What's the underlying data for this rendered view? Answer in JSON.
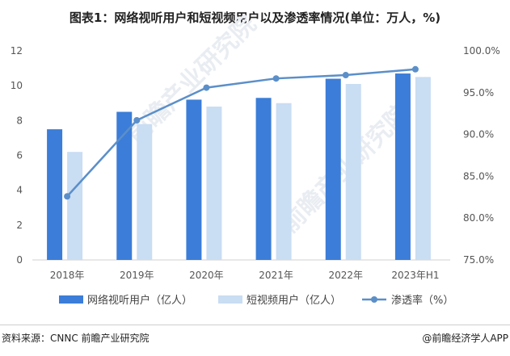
{
  "title": "图表1：网络视听用户和短视频用户以及渗透率情况(单位：万人，%)",
  "footer": {
    "source": "资料来源：CNNC 前瞻产业研究院",
    "credit": "@前瞻经济学人APP"
  },
  "watermarks": [
    "前瞻产业研究院",
    "前瞻产业研究院"
  ],
  "colors": {
    "series1": "#3b7dd8",
    "series2": "#c9ddf3",
    "line": "#5b8fc9",
    "axis": "#d0d0d0"
  },
  "chart_data": {
    "type": "bar",
    "categories": [
      "2018年",
      "2019年",
      "2020年",
      "2021年",
      "2022年",
      "2023年H1"
    ],
    "series": [
      {
        "name": "网络视听用户（亿人）",
        "type": "bar",
        "axis": "left",
        "values": [
          7.5,
          8.5,
          9.2,
          9.3,
          10.4,
          10.7
        ]
      },
      {
        "name": "短视频用户（亿人）",
        "type": "bar",
        "axis": "left",
        "values": [
          6.2,
          7.8,
          8.8,
          9.0,
          10.1,
          10.5
        ]
      },
      {
        "name": "渗透率（%）",
        "type": "line",
        "axis": "right",
        "values": [
          82.6,
          91.7,
          95.6,
          96.7,
          97.1,
          97.8
        ]
      }
    ],
    "left_axis": {
      "min": 0,
      "max": 12,
      "ticks": [
        "0",
        "2",
        "4",
        "6",
        "8",
        "10",
        "12"
      ]
    },
    "right_axis": {
      "min": 75,
      "max": 100,
      "ticks": [
        "75.0%",
        "80.0%",
        "85.0%",
        "90.0%",
        "95.0%",
        "100.0%"
      ]
    },
    "legend_position": "bottom",
    "grid": false
  }
}
